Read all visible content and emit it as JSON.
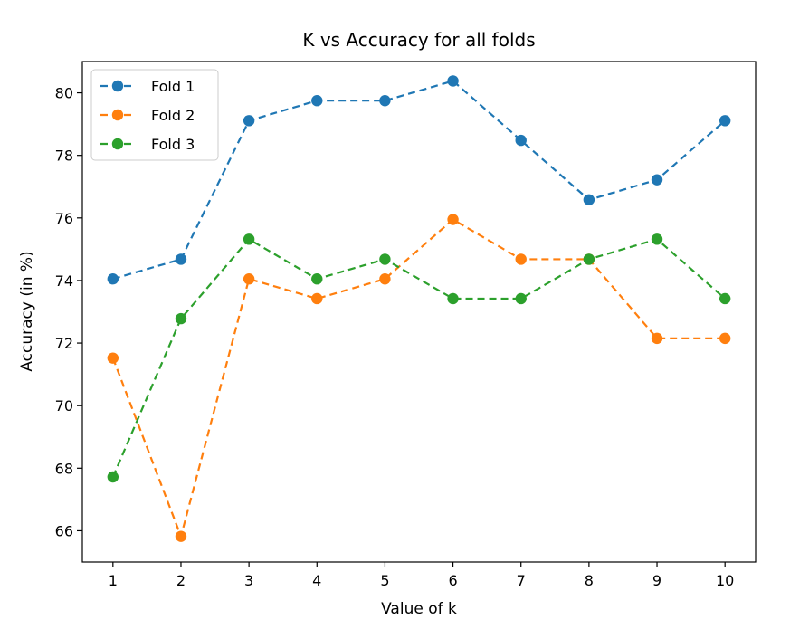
{
  "chart_data": {
    "type": "line",
    "title": "K vs Accuracy for all folds",
    "xlabel": "Value of k",
    "ylabel": "Accuracy (in %)",
    "x": [
      1,
      2,
      3,
      4,
      5,
      6,
      7,
      8,
      9,
      10
    ],
    "xlim": [
      0.55,
      10.45
    ],
    "ylim": [
      65.0,
      81.0
    ],
    "x_ticks": [
      "1",
      "2",
      "3",
      "4",
      "5",
      "6",
      "7",
      "8",
      "9",
      "10"
    ],
    "y_ticks": [
      "66",
      "68",
      "70",
      "72",
      "74",
      "76",
      "78",
      "80"
    ],
    "grid": false,
    "legend_position": "top-left",
    "line_style": "dashed",
    "marker": "circle",
    "series": [
      {
        "name": "Fold 1",
        "color": "#1f77b4",
        "values": [
          74.05,
          74.68,
          79.11,
          79.75,
          79.75,
          80.38,
          78.48,
          76.58,
          77.22,
          79.11
        ]
      },
      {
        "name": "Fold 2",
        "color": "#ff7f0e",
        "values": [
          71.52,
          65.82,
          74.05,
          73.42,
          74.05,
          75.95,
          74.68,
          74.68,
          72.15,
          72.15
        ]
      },
      {
        "name": "Fold 3",
        "color": "#2ca02c",
        "values": [
          67.72,
          72.78,
          75.32,
          74.05,
          74.68,
          73.42,
          73.42,
          74.68,
          75.32,
          73.42
        ]
      }
    ]
  }
}
